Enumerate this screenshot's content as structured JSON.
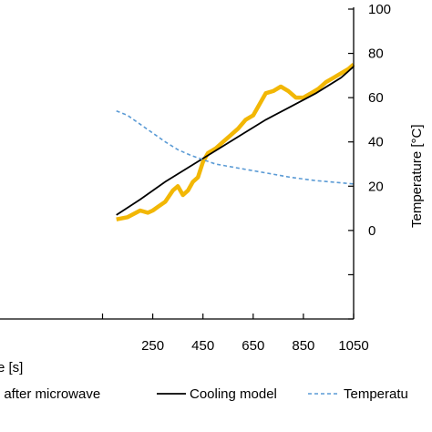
{
  "chart_data": {
    "type": "line",
    "x_axis": {
      "label_visible": "e [s]",
      "ticks": [
        "250",
        "450",
        "650",
        "850",
        "1050"
      ],
      "tick_values": [
        250,
        450,
        650,
        850,
        1050
      ]
    },
    "y_axis_right": {
      "label": "Temperature [°C]",
      "ticks": [
        "100",
        "80",
        "60",
        "40",
        "20",
        "0"
      ],
      "tick_values": [
        100,
        80,
        60,
        40,
        20,
        0
      ],
      "range": [
        -40,
        100
      ]
    },
    "series": [
      {
        "name": "RI after microwave",
        "color": "#f2b705",
        "style": "solid-thick",
        "x": [
          105,
          150,
          200,
          230,
          250,
          275,
          300,
          330,
          350,
          370,
          390,
          410,
          430,
          450,
          470,
          500,
          530,
          560,
          590,
          620,
          650,
          680,
          700,
          730,
          760,
          790,
          820,
          850,
          880,
          910,
          940,
          970,
          1000,
          1030,
          1050
        ],
        "y": [
          5,
          6,
          9,
          8,
          9,
          11,
          13,
          18,
          20,
          16,
          18,
          22,
          24,
          31,
          35,
          37,
          40,
          43,
          46,
          50,
          52,
          58,
          62,
          63,
          65,
          63,
          60,
          60,
          62,
          64,
          67,
          69,
          71,
          73,
          75
        ]
      },
      {
        "name": "Cooling model",
        "color": "#000000",
        "style": "solid",
        "x": [
          105,
          200,
          300,
          400,
          500,
          600,
          700,
          800,
          900,
          1000,
          1050
        ],
        "y": [
          7,
          14,
          22,
          29,
          36,
          43,
          50,
          56,
          62,
          69,
          74
        ]
      },
      {
        "name": "Temperature",
        "color": "#5b9bd5",
        "style": "dashed",
        "x": [
          105,
          150,
          200,
          250,
          300,
          350,
          400,
          450,
          500,
          600,
          700,
          800,
          900,
          1000,
          1050
        ],
        "y": [
          54,
          52,
          48,
          44,
          40,
          36.5,
          34,
          32,
          30,
          28,
          26,
          24,
          22.5,
          21.5,
          21
        ]
      }
    ],
    "legend": {
      "position": "bottom",
      "labels": [
        "RI after microwave",
        "Cooling model",
        "Temperatu"
      ]
    },
    "grid": false
  }
}
